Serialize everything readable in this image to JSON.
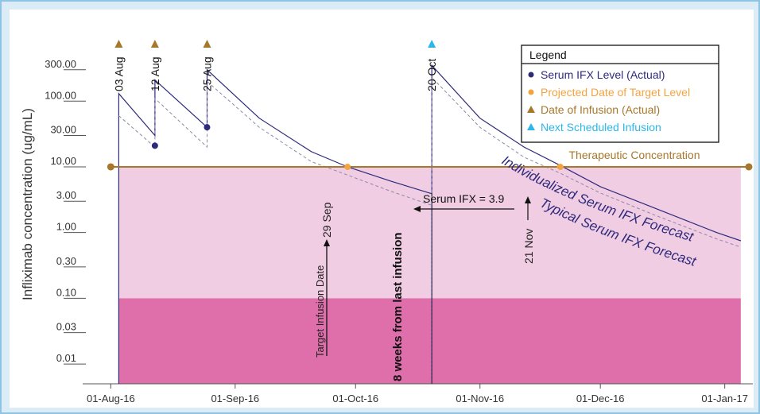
{
  "chart_data": {
    "type": "line",
    "ylabel": "Infliximab concentration (ug/mL)",
    "y_scale": "log",
    "ylim": [
      0.005,
      1500
    ],
    "y_ticks": [
      {
        "value": 300,
        "label": "300.00"
      },
      {
        "value": 100,
        "label": "100.00"
      },
      {
        "value": 30,
        "label": "30.00"
      },
      {
        "value": 10,
        "label": "10.00"
      },
      {
        "value": 3,
        "label": "3.00"
      },
      {
        "value": 1,
        "label": "1.00"
      },
      {
        "value": 0.3,
        "label": "0.30"
      },
      {
        "value": 0.1,
        "label": "0.10"
      },
      {
        "value": 0.03,
        "label": "0.03"
      },
      {
        "value": 0.01,
        "label": "0.01"
      }
    ],
    "xlim": [
      "2016-07-25",
      "2017-01-08"
    ],
    "x_ticks": [
      {
        "date": "2016-08-01",
        "label": "01-Aug-16"
      },
      {
        "date": "2016-09-01",
        "label": "01-Sep-16"
      },
      {
        "date": "2016-10-01",
        "label": "01-Oct-16"
      },
      {
        "date": "2016-11-01",
        "label": "01-Nov-16"
      },
      {
        "date": "2016-12-01",
        "label": "01-Dec-16"
      },
      {
        "date": "2017-01-01",
        "label": "01-Jan-17"
      }
    ],
    "bands": [
      {
        "from": 0.1,
        "to": 10,
        "color": "#f0cde3"
      },
      {
        "from": 0.005,
        "to": 0.1,
        "color": "#de6faa"
      }
    ],
    "band_date_range": [
      "2016-08-03",
      "2017-01-05"
    ],
    "therapeutic": {
      "value": 10,
      "label": "Therapeutic Concentration",
      "from": "2016-08-01",
      "to": "2017-01-07",
      "color": "#a7772b"
    },
    "series": [
      {
        "name": "Individualized Serum IFX Forecast",
        "style": "solid",
        "color": "#2e2a7c",
        "points": [
          [
            "2016-08-03",
            0.005
          ],
          [
            "2016-08-03",
            130
          ],
          [
            "2016-08-12",
            30
          ],
          [
            "2016-08-12",
            210
          ],
          [
            "2016-08-25",
            40
          ],
          [
            "2016-08-25",
            300
          ],
          [
            "2016-09-07",
            55
          ],
          [
            "2016-09-20",
            17
          ],
          [
            "2016-09-29",
            10
          ],
          [
            "2016-10-10",
            6
          ],
          [
            "2016-10-20",
            3.9
          ],
          [
            "2016-10-20",
            0.005
          ],
          [
            "2016-10-20",
            350
          ],
          [
            "2016-11-01",
            55
          ],
          [
            "2016-11-12",
            20
          ],
          [
            "2016-11-21",
            10.5
          ],
          [
            "2016-12-01",
            5
          ],
          [
            "2016-12-15",
            2.3
          ],
          [
            "2016-12-30",
            1.0
          ],
          [
            "2017-01-05",
            0.75
          ]
        ]
      },
      {
        "name": "Typical Serum IFX Forecast",
        "style": "dashed",
        "color": "#8f8aa6",
        "points": [
          [
            "2016-08-03",
            60
          ],
          [
            "2016-08-12",
            20
          ],
          [
            "2016-08-12",
            110
          ],
          [
            "2016-08-25",
            20
          ],
          [
            "2016-08-25",
            200
          ],
          [
            "2016-09-07",
            40
          ],
          [
            "2016-09-20",
            12
          ],
          [
            "2016-09-29",
            7.5
          ],
          [
            "2016-10-10",
            4.2
          ],
          [
            "2016-10-20",
            2.6
          ],
          [
            "2016-10-20",
            230
          ],
          [
            "2016-11-01",
            40
          ],
          [
            "2016-11-12",
            14
          ],
          [
            "2016-11-21",
            8
          ],
          [
            "2016-12-01",
            4
          ],
          [
            "2016-12-15",
            1.8
          ],
          [
            "2016-12-30",
            0.8
          ],
          [
            "2017-01-05",
            0.6
          ]
        ]
      }
    ],
    "serum_points": [
      {
        "date": "2016-08-12",
        "value": 21
      },
      {
        "date": "2016-08-25",
        "value": 40
      }
    ],
    "projected_points": [
      {
        "date": "2016-09-29",
        "value": 10
      },
      {
        "date": "2016-11-21",
        "value": 10
      }
    ],
    "infusions": [
      {
        "date": "2016-08-03",
        "label": "03 Aug",
        "kind": "actual"
      },
      {
        "date": "2016-08-12",
        "label": "12 Aug",
        "kind": "actual"
      },
      {
        "date": "2016-08-25",
        "label": "25 Aug",
        "kind": "actual"
      },
      {
        "date": "2016-10-20",
        "label": "20 Oct",
        "kind": "scheduled"
      }
    ],
    "projected_labels": [
      {
        "date": "2016-09-29",
        "label": "29 Sep"
      },
      {
        "date": "2016-11-21",
        "label": "21 Nov"
      }
    ],
    "annotations": {
      "target_infusion_date": "Target Infusion Date",
      "eight_weeks": "8 weeks from last infusion",
      "serum_ifx": "Serum IFX = 3.9",
      "individualized_label": "Individualized Serum IFX Forecast",
      "typical_label": "Typical Serum IFX Forecast"
    },
    "legend": {
      "title": "Legend",
      "position": "top-right",
      "items": [
        {
          "label": "Serum IFX Level (Actual)",
          "marker": "circle",
          "color": "#2e2a7c",
          "text_color": "#2e2a7c"
        },
        {
          "label": "Projected Date of Target Level",
          "marker": "circle",
          "color": "#f4a341",
          "text_color": "#f4a341"
        },
        {
          "label": "Date of Infusion (Actual)",
          "marker": "triangle",
          "color": "#a7772b",
          "text_color": "#a7772b"
        },
        {
          "label": "Next Scheduled Infusion",
          "marker": "triangle",
          "color": "#2cb7ea",
          "text_color": "#2cb7ea"
        }
      ]
    },
    "colors": {
      "frame_bg": "#dcecf7",
      "frame_border": "#8ec5e6",
      "axis": "#555555",
      "individualized": "#2e2a7c",
      "projected": "#f4a341",
      "infusion_actual": "#a7772b",
      "infusion_scheduled": "#2cb7ea"
    }
  }
}
